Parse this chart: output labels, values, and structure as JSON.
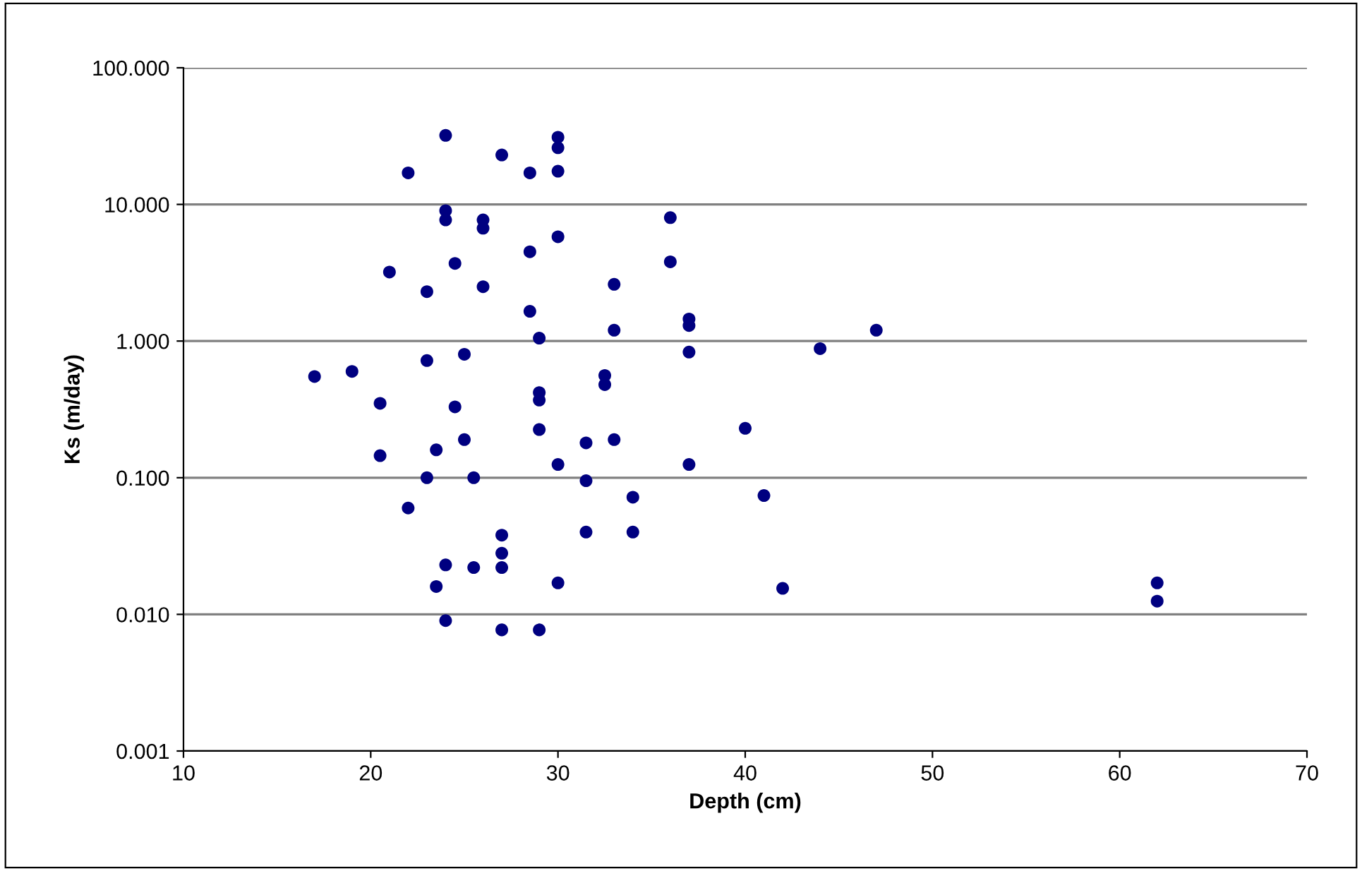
{
  "chart_data": {
    "type": "scatter",
    "xlabel": "Depth (cm)",
    "ylabel": "Ks (m/day)",
    "log": "y",
    "grid": "y",
    "legend": false,
    "marker": "circle",
    "xlim": [
      10,
      70
    ],
    "xticks": [
      10,
      20,
      30,
      40,
      50,
      60,
      70
    ],
    "ylim": [
      0.001,
      100
    ],
    "yticks": [
      {
        "value": 0.001,
        "label": "0.001"
      },
      {
        "value": 0.01,
        "label": "0.010"
      },
      {
        "value": 0.1,
        "label": "0.100"
      },
      {
        "value": 1,
        "label": "1.000"
      },
      {
        "value": 10,
        "label": "10.000"
      },
      {
        "value": 100,
        "label": "100.000"
      }
    ],
    "series": [
      {
        "color": "#000080",
        "x": [
          24,
          27,
          30,
          30,
          22,
          28.5,
          30,
          24,
          24,
          26,
          26,
          36,
          30,
          28.5,
          24.5,
          21,
          36,
          23,
          26,
          33,
          28.5,
          37,
          37,
          33,
          47,
          29,
          44,
          25,
          37,
          23,
          17,
          19,
          32.5,
          32.5,
          29,
          29,
          20.5,
          24.5,
          40,
          29,
          25,
          31.5,
          33,
          23.5,
          20.5,
          30,
          37,
          23,
          25.5,
          31.5,
          34,
          41,
          22,
          27,
          31.5,
          34,
          27,
          24,
          25.5,
          27,
          30,
          23.5,
          42,
          62,
          62,
          24,
          27,
          29
        ],
        "values": [
          32,
          23,
          31,
          26,
          17,
          17,
          17.5,
          9,
          7.7,
          7.7,
          6.7,
          8,
          5.8,
          4.5,
          3.7,
          3.2,
          3.8,
          2.3,
          2.5,
          2.6,
          1.65,
          1.45,
          1.3,
          1.2,
          1.2,
          1.05,
          0.88,
          0.8,
          0.83,
          0.72,
          0.55,
          0.6,
          0.56,
          0.48,
          0.42,
          0.37,
          0.35,
          0.33,
          0.23,
          0.225,
          0.19,
          0.18,
          0.19,
          0.16,
          0.145,
          0.125,
          0.125,
          0.1,
          0.1,
          0.095,
          0.072,
          0.074,
          0.06,
          0.038,
          0.04,
          0.04,
          0.028,
          0.023,
          0.022,
          0.022,
          0.017,
          0.016,
          0.0155,
          0.017,
          0.0125,
          0.009,
          0.0077,
          0.0077
        ]
      }
    ]
  }
}
